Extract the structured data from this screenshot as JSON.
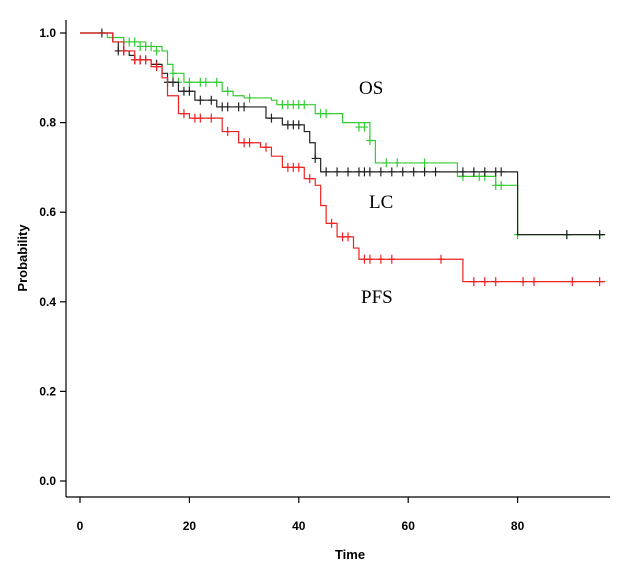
{
  "chart_data": {
    "type": "line",
    "xlabel": "Time",
    "ylabel": "Probability",
    "xlim": [
      0,
      98
    ],
    "ylim": [
      0,
      1.03
    ],
    "xticks": [
      0,
      20,
      40,
      60,
      80
    ],
    "yticks": [
      0.0,
      0.2,
      0.4,
      0.6,
      0.8,
      1.0
    ],
    "xtick_labels": [
      "0",
      "20",
      "40",
      "60",
      "80"
    ],
    "ytick_labels": [
      "0.0",
      "0.2",
      "0.4",
      "0.6",
      "0.8",
      "1.0"
    ],
    "grid": false,
    "legend": "none",
    "series": [
      {
        "name": "OS",
        "color": "#33cc33",
        "steps": [
          [
            0,
            1.0
          ],
          [
            5,
            0.99
          ],
          [
            8,
            0.98
          ],
          [
            12,
            0.97
          ],
          [
            15,
            0.96
          ],
          [
            16,
            0.93
          ],
          [
            17,
            0.91
          ],
          [
            19,
            0.89
          ],
          [
            26,
            0.87
          ],
          [
            28,
            0.86
          ],
          [
            30,
            0.855
          ],
          [
            35,
            0.85
          ],
          [
            36,
            0.84
          ],
          [
            43,
            0.82
          ],
          [
            48,
            0.8
          ],
          [
            53,
            0.76
          ],
          [
            54,
            0.71
          ],
          [
            62,
            0.71
          ],
          [
            69,
            0.68
          ],
          [
            76,
            0.66
          ],
          [
            80,
            0.55
          ],
          [
            96,
            0.55
          ]
        ],
        "censored": [
          [
            8,
            0.98
          ],
          [
            9,
            0.98
          ],
          [
            10,
            0.98
          ],
          [
            11,
            0.97
          ],
          [
            12,
            0.97
          ],
          [
            13,
            0.97
          ],
          [
            14,
            0.96
          ],
          [
            17,
            0.91
          ],
          [
            18,
            0.89
          ],
          [
            20,
            0.89
          ],
          [
            22,
            0.89
          ],
          [
            23,
            0.89
          ],
          [
            25,
            0.89
          ],
          [
            27,
            0.87
          ],
          [
            31,
            0.855
          ],
          [
            37,
            0.84
          ],
          [
            38,
            0.84
          ],
          [
            39,
            0.84
          ],
          [
            40,
            0.84
          ],
          [
            41,
            0.84
          ],
          [
            44,
            0.82
          ],
          [
            45,
            0.82
          ],
          [
            51,
            0.79
          ],
          [
            52,
            0.79
          ],
          [
            53,
            0.76
          ],
          [
            56,
            0.71
          ],
          [
            58,
            0.71
          ],
          [
            63,
            0.71
          ],
          [
            70,
            0.68
          ],
          [
            73,
            0.68
          ],
          [
            74,
            0.68
          ],
          [
            76,
            0.66
          ],
          [
            77,
            0.66
          ],
          [
            80,
            0.55
          ],
          [
            89,
            0.55
          ],
          [
            95,
            0.55
          ]
        ]
      },
      {
        "name": "LC",
        "color": "#222222",
        "steps": [
          [
            0,
            1.0
          ],
          [
            4,
            1.0
          ],
          [
            6,
            0.98
          ],
          [
            7,
            0.96
          ],
          [
            9,
            0.95
          ],
          [
            10,
            0.94
          ],
          [
            13,
            0.93
          ],
          [
            15,
            0.91
          ],
          [
            16,
            0.89
          ],
          [
            18,
            0.87
          ],
          [
            21,
            0.85
          ],
          [
            23,
            0.85
          ],
          [
            25,
            0.835
          ],
          [
            34,
            0.81
          ],
          [
            37,
            0.795
          ],
          [
            41,
            0.78
          ],
          [
            42,
            0.755
          ],
          [
            43,
            0.72
          ],
          [
            44,
            0.69
          ],
          [
            79,
            0.69
          ],
          [
            80,
            0.55
          ],
          [
            96,
            0.55
          ]
        ],
        "censored": [
          [
            4,
            1.0
          ],
          [
            7,
            0.96
          ],
          [
            8,
            0.96
          ],
          [
            10,
            0.94
          ],
          [
            11,
            0.94
          ],
          [
            12,
            0.94
          ],
          [
            14,
            0.93
          ],
          [
            16,
            0.89
          ],
          [
            17,
            0.89
          ],
          [
            19,
            0.87
          ],
          [
            20,
            0.87
          ],
          [
            22,
            0.85
          ],
          [
            24,
            0.85
          ],
          [
            26,
            0.835
          ],
          [
            27,
            0.835
          ],
          [
            29,
            0.835
          ],
          [
            30,
            0.835
          ],
          [
            35,
            0.81
          ],
          [
            38,
            0.795
          ],
          [
            39,
            0.795
          ],
          [
            40,
            0.795
          ],
          [
            43,
            0.72
          ],
          [
            45,
            0.69
          ],
          [
            47,
            0.69
          ],
          [
            49,
            0.69
          ],
          [
            51,
            0.69
          ],
          [
            52,
            0.69
          ],
          [
            53,
            0.69
          ],
          [
            55,
            0.69
          ],
          [
            57,
            0.69
          ],
          [
            59,
            0.69
          ],
          [
            61,
            0.69
          ],
          [
            63,
            0.69
          ],
          [
            65,
            0.69
          ],
          [
            70,
            0.69
          ],
          [
            72,
            0.69
          ],
          [
            74,
            0.69
          ],
          [
            76,
            0.69
          ],
          [
            77,
            0.69
          ],
          [
            89,
            0.55
          ],
          [
            95,
            0.55
          ]
        ]
      },
      {
        "name": "PFS",
        "color": "#ee2222",
        "steps": [
          [
            0,
            1.0
          ],
          [
            6,
            0.98
          ],
          [
            8,
            0.96
          ],
          [
            10,
            0.94
          ],
          [
            13,
            0.925
          ],
          [
            15,
            0.9
          ],
          [
            16,
            0.86
          ],
          [
            18,
            0.82
          ],
          [
            20,
            0.81
          ],
          [
            23,
            0.81
          ],
          [
            26,
            0.78
          ],
          [
            29,
            0.755
          ],
          [
            33,
            0.745
          ],
          [
            35,
            0.725
          ],
          [
            37,
            0.7
          ],
          [
            41,
            0.675
          ],
          [
            43,
            0.66
          ],
          [
            44,
            0.615
          ],
          [
            45,
            0.575
          ],
          [
            47,
            0.545
          ],
          [
            50,
            0.52
          ],
          [
            51,
            0.495
          ],
          [
            69,
            0.495
          ],
          [
            70,
            0.445
          ],
          [
            96,
            0.445
          ]
        ],
        "censored": [
          [
            8,
            0.96
          ],
          [
            10,
            0.94
          ],
          [
            11,
            0.94
          ],
          [
            12,
            0.94
          ],
          [
            14,
            0.925
          ],
          [
            19,
            0.82
          ],
          [
            21,
            0.81
          ],
          [
            22,
            0.81
          ],
          [
            24,
            0.81
          ],
          [
            27,
            0.78
          ],
          [
            30,
            0.755
          ],
          [
            31,
            0.755
          ],
          [
            34,
            0.745
          ],
          [
            38,
            0.7
          ],
          [
            39,
            0.7
          ],
          [
            40,
            0.7
          ],
          [
            42,
            0.675
          ],
          [
            46,
            0.575
          ],
          [
            48,
            0.545
          ],
          [
            49,
            0.545
          ],
          [
            52,
            0.495
          ],
          [
            53,
            0.495
          ],
          [
            55,
            0.495
          ],
          [
            57,
            0.495
          ],
          [
            66,
            0.495
          ],
          [
            72,
            0.445
          ],
          [
            74,
            0.445
          ],
          [
            76,
            0.445
          ],
          [
            81,
            0.445
          ],
          [
            83,
            0.445
          ],
          [
            90,
            0.445
          ],
          [
            95,
            0.445
          ]
        ]
      }
    ],
    "annotations": [
      "OS",
      "LC",
      "PFS"
    ]
  }
}
